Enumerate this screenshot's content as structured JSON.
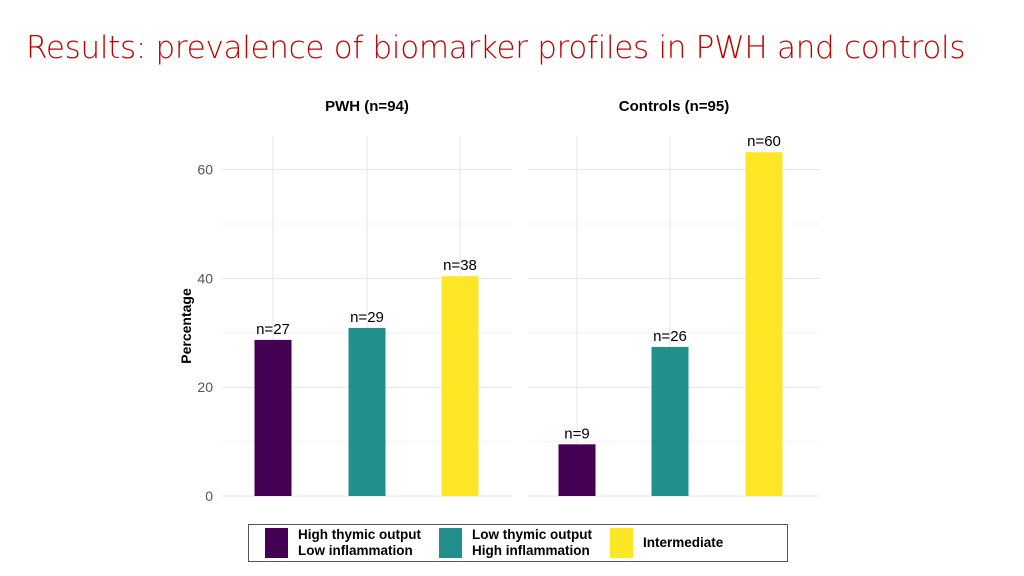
{
  "title": "Results: prevalence of biomarker profiles in PWH and controls",
  "chart_data": {
    "type": "bar",
    "ylabel": "Percentage",
    "ylim": [
      0,
      66
    ],
    "yticks": [
      0,
      20,
      40,
      60
    ],
    "grid": true,
    "legend_position": "bottom",
    "facets": [
      {
        "title": "PWH (n=94)",
        "series": [
          {
            "name_lines": [
              "High thymic output",
              "Low inflammation"
            ],
            "value": 28.7,
            "label": "n=27"
          },
          {
            "name_lines": [
              "Low thymic output",
              "High inflammation"
            ],
            "value": 30.9,
            "label": "n=29"
          },
          {
            "name_lines": [
              "Intermediate"
            ],
            "value": 40.4,
            "label": "n=38"
          }
        ]
      },
      {
        "title": "Controls (n=95)",
        "series": [
          {
            "name_lines": [
              "High thymic output",
              "Low inflammation"
            ],
            "value": 9.5,
            "label": "n=9"
          },
          {
            "name_lines": [
              "Low thymic output",
              "High inflammation"
            ],
            "value": 27.4,
            "label": "n=26"
          },
          {
            "name_lines": [
              "Intermediate"
            ],
            "value": 63.2,
            "label": "n=60"
          }
        ]
      }
    ],
    "legend": [
      {
        "lines": [
          "High thymic output",
          "Low inflammation"
        ],
        "color": "#440154"
      },
      {
        "lines": [
          "Low thymic output",
          "High inflammation"
        ],
        "color": "#21908c"
      },
      {
        "lines": [
          "Intermediate"
        ],
        "color": "#fde725"
      }
    ]
  }
}
